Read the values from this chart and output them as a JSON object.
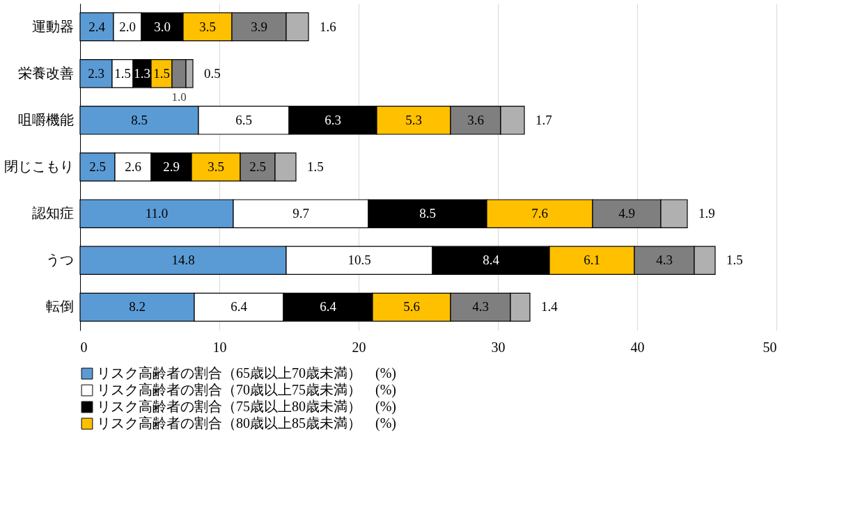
{
  "chart_data": {
    "type": "bar",
    "orientation": "horizontal",
    "stacked": true,
    "categories": [
      "運動器",
      "栄養改善",
      "咀嚼機能",
      "閉じこもり",
      "認知症",
      "うつ",
      "転倒"
    ],
    "series": [
      {
        "name": "リスク高齢者の割合（65歳以上70歳未満）　(%)",
        "color": "#5b9bd5",
        "values": [
          2.4,
          2.3,
          8.5,
          2.5,
          11.0,
          14.8,
          8.2
        ],
        "value_labels": [
          "2.4",
          "2.3",
          "8.5",
          "2.5",
          "11.0",
          "14.8",
          "8.2"
        ]
      },
      {
        "name": "リスク高齢者の割合（70歳以上75歳未満）　(%)",
        "color": "#ffffff",
        "values": [
          2.0,
          1.5,
          6.5,
          2.6,
          9.7,
          10.5,
          6.4
        ],
        "value_labels": [
          "2.0",
          "1.5",
          "6.5",
          "2.6",
          "9.7",
          "10.5",
          "6.4"
        ]
      },
      {
        "name": "リスク高齢者の割合（75歳以上80歳未満）　(%)",
        "color": "#000000",
        "values": [
          3.0,
          1.3,
          6.3,
          2.9,
          8.5,
          8.4,
          6.4
        ],
        "value_labels": [
          "3.0",
          "1.3",
          "6.3",
          "2.9",
          "8.5",
          "8.4",
          "6.4"
        ]
      },
      {
        "name": "リスク高齢者の割合（80歳以上85歳未満）　(%)",
        "color": "#ffc000",
        "values": [
          3.5,
          1.5,
          5.3,
          3.5,
          7.6,
          6.1,
          5.6
        ],
        "value_labels": [
          "3.5",
          "1.5",
          "5.3",
          "3.5",
          "7.6",
          "6.1",
          "5.6"
        ]
      },
      {
        "color": "#7f7f7f",
        "values": [
          3.9,
          1.0,
          3.6,
          2.5,
          4.9,
          4.3,
          4.3
        ],
        "value_labels": [
          "3.9",
          "1.0",
          "3.6",
          "2.5",
          "4.9",
          "4.3",
          "4.3"
        ]
      },
      {
        "color": "#b0b0b0",
        "values": [
          1.6,
          0.5,
          1.7,
          1.5,
          1.9,
          1.5,
          1.4
        ],
        "value_labels": [
          "1.6",
          "0.5",
          "1.7",
          "1.5",
          "1.9",
          "1.5",
          "1.4"
        ]
      }
    ],
    "xlim": [
      0,
      50
    ],
    "xticks": [
      0,
      10,
      20,
      30,
      40,
      50
    ],
    "grid": "x",
    "legend": "bottom"
  }
}
